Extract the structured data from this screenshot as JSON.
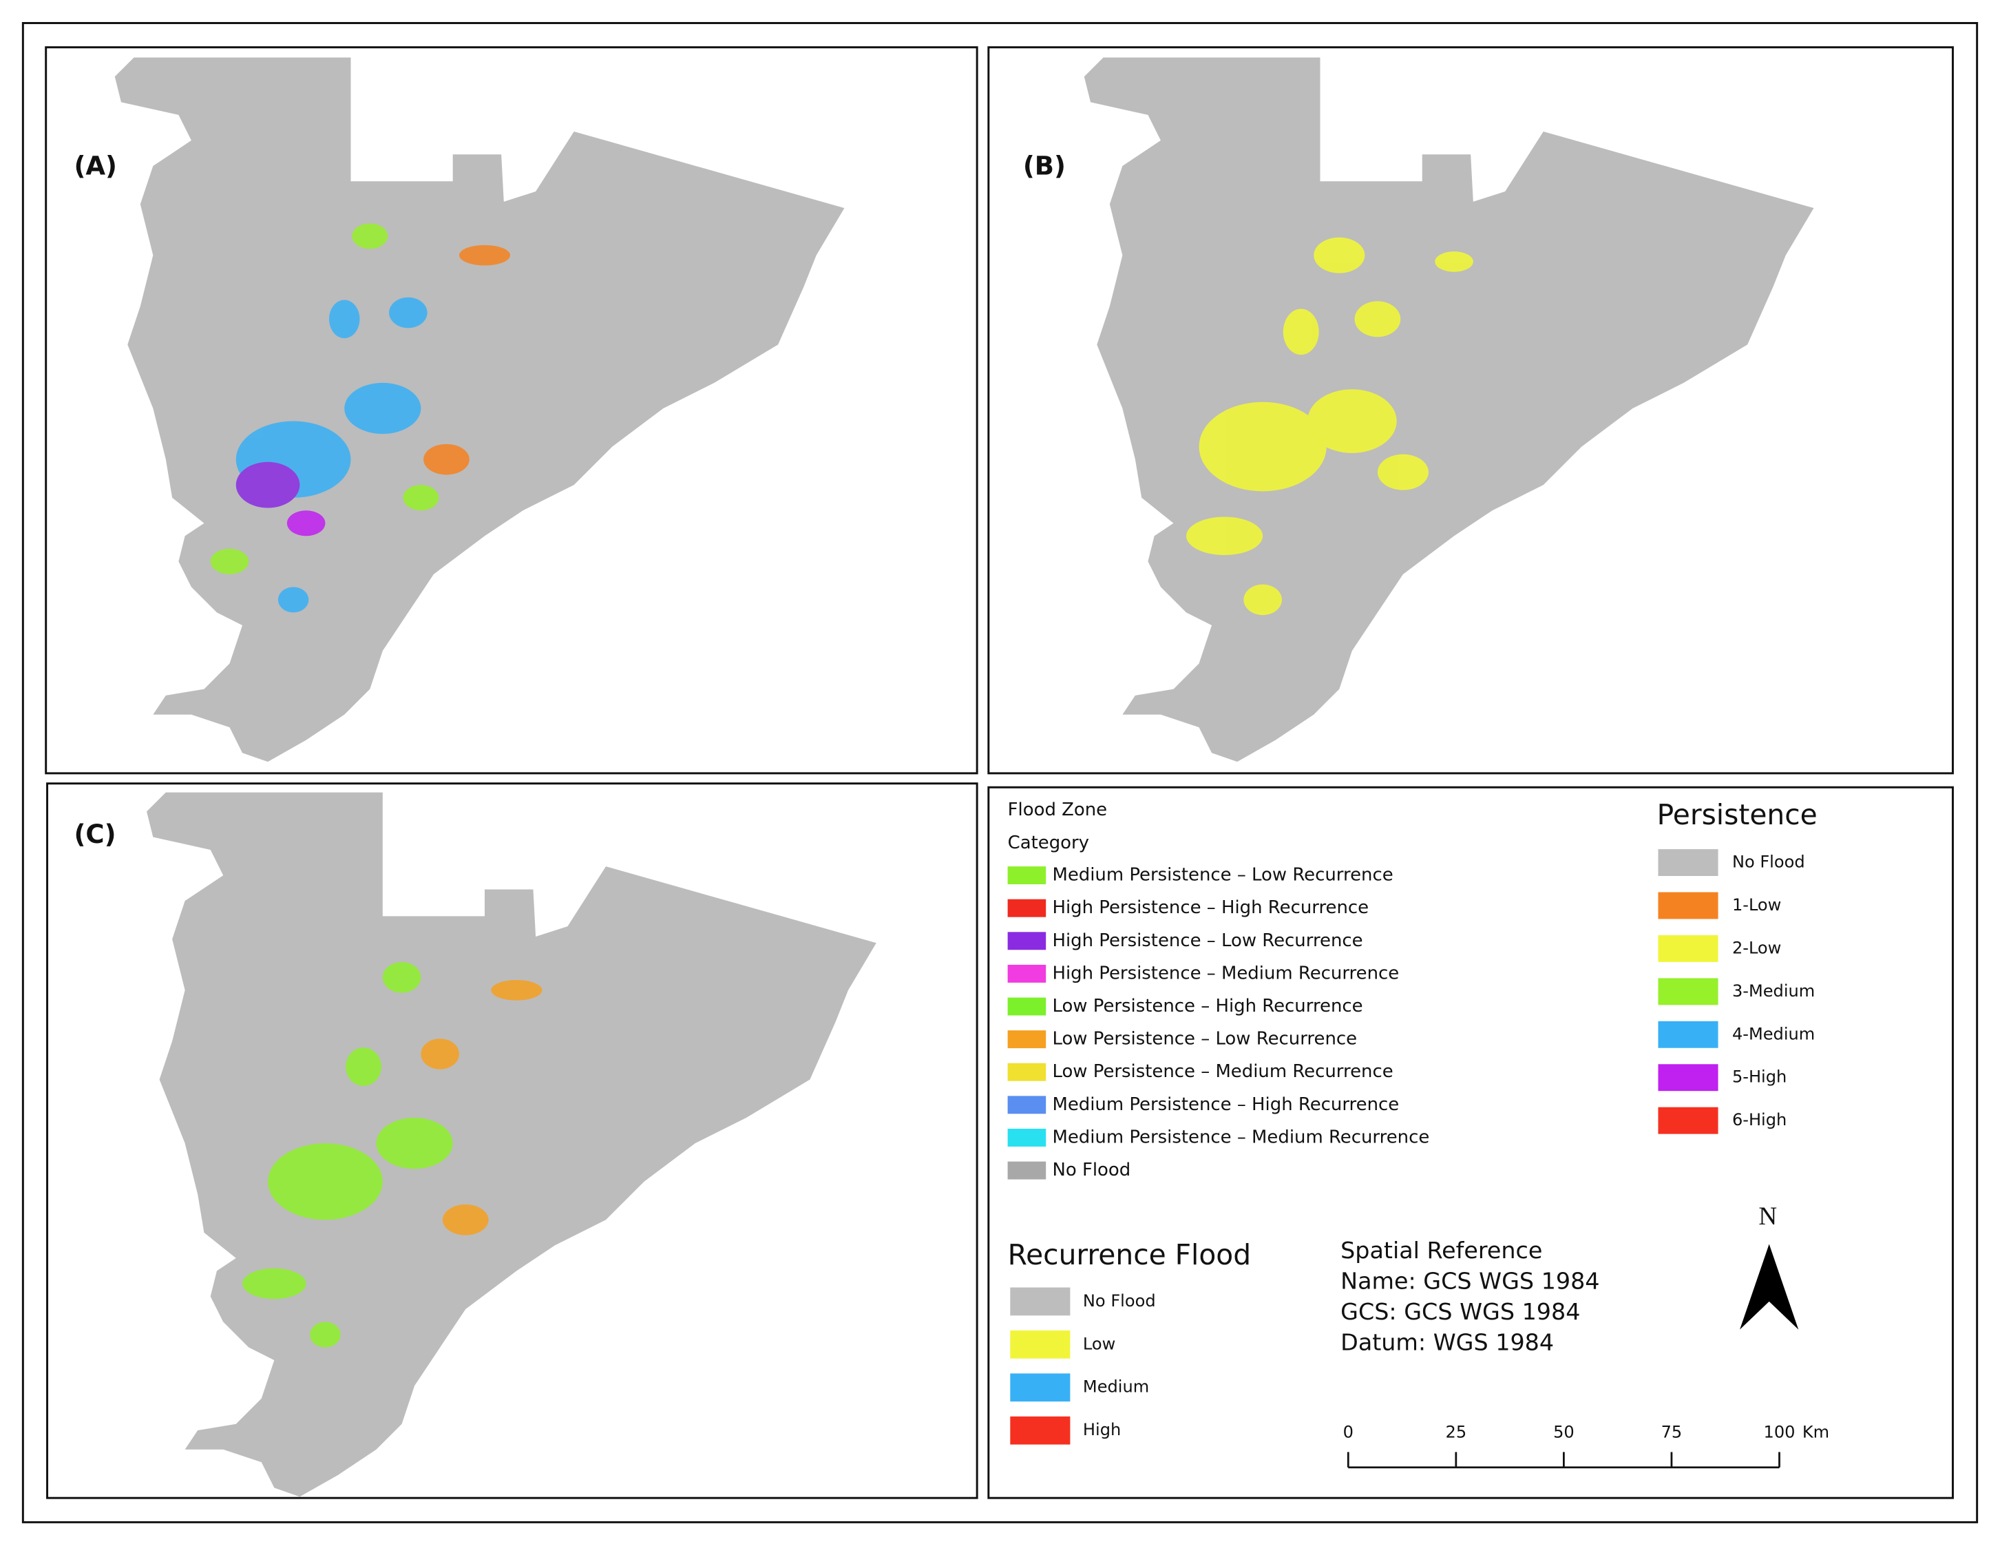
{
  "panels": [
    {
      "label": "(A)"
    },
    {
      "label": "(B)"
    },
    {
      "label": "(C)"
    }
  ],
  "legend": {
    "flood_zone": {
      "title": "Flood Zone",
      "subtitle": "Category",
      "items": [
        {
          "label": "Medium Persistence – Low Recurrence",
          "color": "#8ef02a"
        },
        {
          "label": "High Persistence – High Recurrence",
          "color": "#f02a1e"
        },
        {
          "label": "High Persistence – Low Recurrence",
          "color": "#8a2be2"
        },
        {
          "label": "High Persistence – Medium Recurrence",
          "color": "#f03ce0"
        },
        {
          "label": "Low Persistence – High Recurrence",
          "color": "#7cf02a"
        },
        {
          "label": "Low Persistence – Low Recurrence",
          "color": "#f5a020"
        },
        {
          "label": "Low Persistence – Medium Recurrence",
          "color": "#f0e030"
        },
        {
          "label": "Medium Persistence – High Recurrence",
          "color": "#5a8ef0"
        },
        {
          "label": "Medium Persistence – Medium Recurrence",
          "color": "#28e0f0"
        },
        {
          "label": "No Flood",
          "color": "#a8a8a8"
        }
      ]
    },
    "persistence": {
      "title": "Persistence",
      "items": [
        {
          "label": "No Flood",
          "color": "#bdbdbd"
        },
        {
          "label": "1-Low",
          "color": "#f58220"
        },
        {
          "label": "2-Low",
          "color": "#f0f53a"
        },
        {
          "label": "3-Medium",
          "color": "#96f02a"
        },
        {
          "label": "4-Medium",
          "color": "#38b0f5"
        },
        {
          "label": "5-High",
          "color": "#c020f0"
        },
        {
          "label": "6-High",
          "color": "#f53020"
        }
      ]
    },
    "recurrence": {
      "title": "Recurrence Flood",
      "items": [
        {
          "label": "No Flood",
          "color": "#bdbdbd"
        },
        {
          "label": "Low",
          "color": "#f0f53a"
        },
        {
          "label": "Medium",
          "color": "#38b0f5"
        },
        {
          "label": "High",
          "color": "#f53020"
        }
      ]
    },
    "spatial_reference": {
      "title": "Spatial Reference",
      "lines": [
        "Name: GCS WGS 1984",
        "GCS: GCS WGS 1984",
        "Datum: WGS 1984"
      ]
    },
    "north_arrow": "N",
    "scale_bar": {
      "ticks": [
        0,
        25,
        50,
        75,
        100
      ],
      "unit": "Km"
    }
  }
}
